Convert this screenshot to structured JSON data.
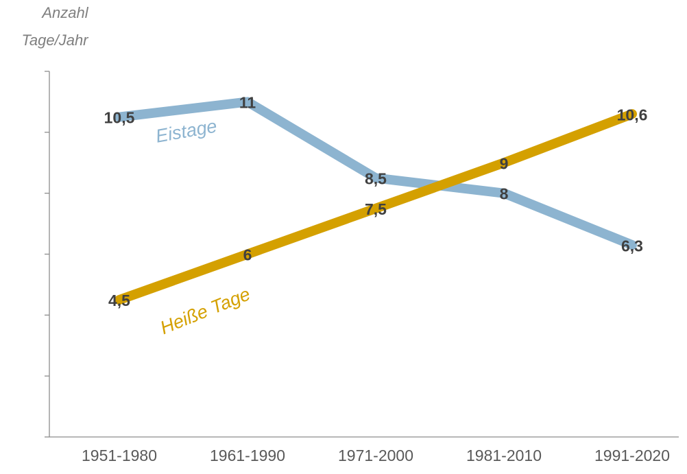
{
  "chart_data": {
    "type": "line",
    "y_label": [
      "Anzahl",
      "Tage/Jahr"
    ],
    "categories": [
      "1951-1980",
      "1961-1990",
      "1971-2000",
      "1981-2010",
      "1991-2020"
    ],
    "series": [
      {
        "name": "Eistage",
        "color": "#8db4d0",
        "values": [
          10.5,
          11,
          8.5,
          8,
          6.3
        ],
        "value_labels": [
          "10,5",
          "11",
          "8,5",
          "8",
          "6,3"
        ]
      },
      {
        "name": "Heiße Tage",
        "color": "#d4a000",
        "values": [
          4.5,
          6,
          7.5,
          9,
          10.6
        ],
        "value_labels": [
          "4,5",
          "6",
          "7,5",
          "9",
          "10,6"
        ]
      }
    ],
    "ylim": [
      0,
      12
    ],
    "yticks": [
      0,
      2,
      4,
      6,
      8,
      10,
      12
    ],
    "grid": false
  }
}
